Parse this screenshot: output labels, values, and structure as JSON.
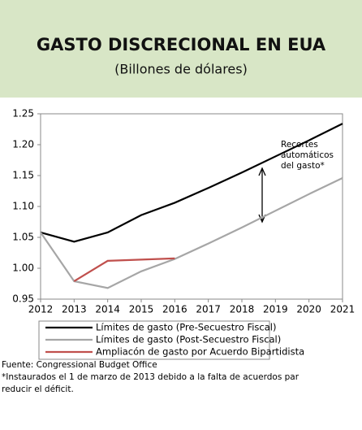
{
  "chart_data": {
    "type": "line",
    "title": "GASTO DISCRECIONAL EN EUA",
    "subtitle": "(Billones de dólares)",
    "x": [
      2012,
      2013,
      2014,
      2015,
      2016,
      2017,
      2018,
      2019,
      2020,
      2021
    ],
    "xlim": [
      2012,
      2021
    ],
    "xticks": [
      2012,
      2013,
      2014,
      2015,
      2016,
      2017,
      2018,
      2019,
      2020,
      2021
    ],
    "ylim": [
      0.95,
      1.25
    ],
    "yticks": [
      0.95,
      {
        "value": 1.0,
        "label": "1.00"
      },
      1.05,
      {
        "value": 1.1,
        "label": "1.10"
      },
      1.15,
      {
        "value": 1.2,
        "label": "1.20"
      },
      1.25
    ],
    "series": [
      {
        "name": "Límites de gasto (Pre-Secuestro Fiscal)",
        "color": "#000000",
        "values": [
          1.058,
          1.043,
          1.058,
          1.086,
          1.106,
          1.13,
          1.155,
          1.181,
          1.207,
          1.234
        ]
      },
      {
        "name": "Límites de gasto (Post-Secuestro Fiscal)",
        "color": "#a6a6a6",
        "values": [
          1.058,
          0.979,
          0.968,
          0.995,
          1.015,
          1.04,
          1.066,
          1.093,
          1.12,
          1.146
        ]
      },
      {
        "name": "Ampliacón de gasto por Acuerdo Bipartidista",
        "color": "#c0504d",
        "values": [
          null,
          0.979,
          1.012,
          1.014,
          1.016,
          null,
          null,
          null,
          null,
          null
        ]
      }
    ],
    "annotation": [
      "Recortes",
      "automáticos",
      "del gasto*"
    ],
    "footer": [
      "Fuente:  Congressional Budget Office",
      "*Instaurados el 1 de marzo de 2013 debido a la falta de acuerdos par",
      "reducir el déficit."
    ]
  }
}
